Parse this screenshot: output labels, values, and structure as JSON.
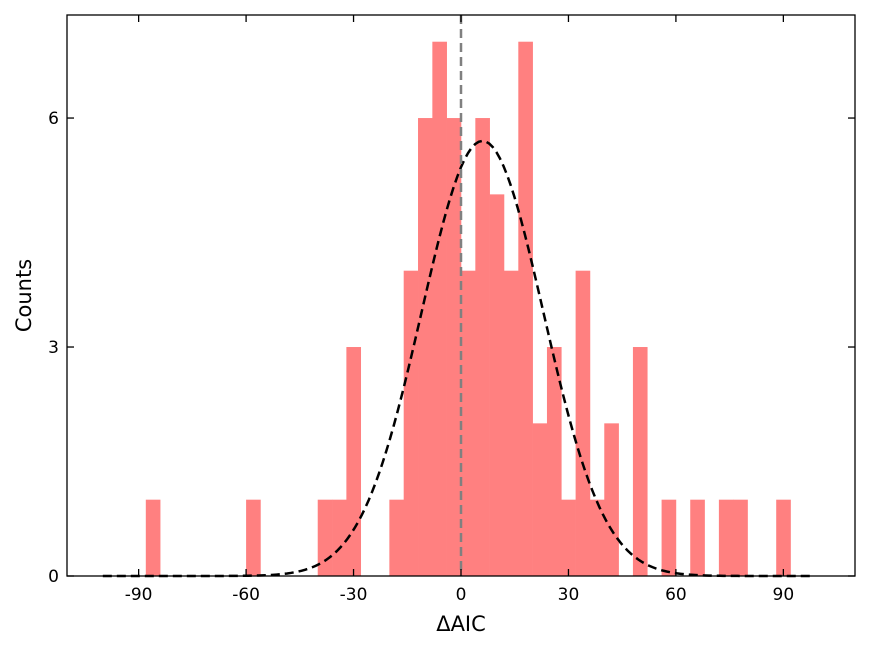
{
  "chart_data": {
    "type": "bar",
    "title": "",
    "xlabel": "ΔAIC",
    "ylabel": "Counts",
    "xlim": [
      -110,
      110
    ],
    "ylim": [
      0,
      7.35
    ],
    "bin_width": 4,
    "x_ticks": [
      -90,
      -60,
      -30,
      0,
      30,
      60,
      90
    ],
    "x_tick_labels": [
      "-90",
      "-60",
      "-30",
      "0",
      "30",
      "60",
      "90"
    ],
    "y_ticks": [
      0,
      3,
      6
    ],
    "y_tick_labels": [
      "0",
      "3",
      "6"
    ],
    "grid": false,
    "legend": "none",
    "histogram": {
      "bin_starts": [
        -88,
        -60,
        -40,
        -36,
        -32,
        -20,
        -16,
        -12,
        -8,
        -4,
        0,
        4,
        8,
        12,
        16,
        20,
        24,
        28,
        32,
        36,
        40,
        48,
        56,
        64,
        72,
        76,
        88
      ],
      "counts": [
        1,
        1,
        1,
        1,
        3,
        1,
        4,
        6,
        7,
        6,
        4,
        6,
        5,
        4,
        7,
        2,
        3,
        1,
        4,
        1,
        2,
        3,
        1,
        1,
        1,
        1,
        1
      ]
    },
    "fit_curve": {
      "type": "gaussian",
      "mean": 6,
      "sigma": 17,
      "peak": 5.7,
      "x_range": [
        -100,
        98
      ],
      "line_style": "dashed",
      "color": "#000000"
    },
    "reference_line": {
      "x": 0,
      "line_style": "dashed",
      "color": "#808080"
    },
    "bar_color": "#ff8080"
  }
}
